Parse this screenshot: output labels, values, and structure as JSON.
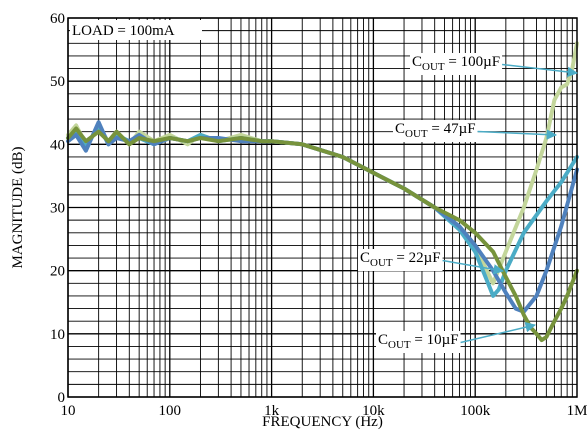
{
  "chart_data": {
    "type": "line",
    "xlabel": "FREQUENCY (Hz)",
    "ylabel": "MAGNITUDE (dB)",
    "x_scale": "log",
    "xlim": [
      10,
      1000000
    ],
    "ylim": [
      0,
      60
    ],
    "grid": true,
    "x_ticks": [
      {
        "value": 10,
        "label": "10"
      },
      {
        "value": 100,
        "label": "100"
      },
      {
        "value": 1000,
        "label": "1k"
      },
      {
        "value": 10000,
        "label": "10k"
      },
      {
        "value": 100000,
        "label": "100k"
      },
      {
        "value": 1000000,
        "label": "1M"
      }
    ],
    "y_ticks": [
      0,
      10,
      20,
      30,
      40,
      50,
      60
    ],
    "annotation_load": "LOAD = 100mA",
    "series": [
      {
        "name": "COUT = 100µF",
        "label_main": "C",
        "label_sub": "OUT",
        "label_rest": " = 100µF",
        "color": "#c3d69b",
        "points": [
          [
            10,
            41.5
          ],
          [
            12,
            43
          ],
          [
            15,
            40
          ],
          [
            20,
            42.5
          ],
          [
            25,
            40.5
          ],
          [
            30,
            42
          ],
          [
            40,
            40
          ],
          [
            50,
            42
          ],
          [
            70,
            40.5
          ],
          [
            100,
            41.5
          ],
          [
            150,
            40
          ],
          [
            200,
            41.5
          ],
          [
            300,
            40.5
          ],
          [
            500,
            41.5
          ],
          [
            800,
            40.5
          ],
          [
            1000,
            40.5
          ],
          [
            2000,
            40
          ],
          [
            5000,
            38
          ],
          [
            10000,
            35.5
          ],
          [
            20000,
            33
          ],
          [
            40000,
            30
          ],
          [
            70000,
            27
          ],
          [
            100000,
            24
          ],
          [
            130000,
            20
          ],
          [
            150000,
            18
          ],
          [
            200000,
            23
          ],
          [
            300000,
            30
          ],
          [
            400000,
            36
          ],
          [
            500000,
            41
          ],
          [
            600000,
            47
          ],
          [
            700000,
            49
          ],
          [
            800000,
            49.5
          ],
          [
            900000,
            52
          ],
          [
            1000000,
            56
          ]
        ]
      },
      {
        "name": "COUT = 47µF",
        "label_main": "C",
        "label_sub": "OUT",
        "label_rest": " = 47µF",
        "color": "#4bacc6",
        "points": [
          [
            10,
            41
          ],
          [
            12,
            42
          ],
          [
            15,
            39.5
          ],
          [
            20,
            43
          ],
          [
            25,
            40
          ],
          [
            30,
            41.5
          ],
          [
            40,
            40.5
          ],
          [
            50,
            41
          ],
          [
            70,
            40
          ],
          [
            100,
            41
          ],
          [
            150,
            40.5
          ],
          [
            200,
            41.5
          ],
          [
            300,
            40.5
          ],
          [
            500,
            41
          ],
          [
            800,
            40.5
          ],
          [
            1000,
            40.5
          ],
          [
            2000,
            40
          ],
          [
            5000,
            38
          ],
          [
            10000,
            35.5
          ],
          [
            20000,
            33
          ],
          [
            40000,
            30
          ],
          [
            70000,
            26.5
          ],
          [
            100000,
            23
          ],
          [
            130000,
            18.5
          ],
          [
            150000,
            16
          ],
          [
            170000,
            17
          ],
          [
            200000,
            20
          ],
          [
            300000,
            26
          ],
          [
            500000,
            31
          ],
          [
            700000,
            34
          ],
          [
            1000000,
            38
          ]
        ]
      },
      {
        "name": "COUT = 22µF",
        "label_main": "C",
        "label_sub": "OUT",
        "label_rest": " = 22µF",
        "color": "#4f81bd",
        "points": [
          [
            10,
            40.5
          ],
          [
            12,
            41.5
          ],
          [
            15,
            39
          ],
          [
            20,
            43.5
          ],
          [
            25,
            40
          ],
          [
            30,
            41
          ],
          [
            40,
            40.5
          ],
          [
            50,
            41.5
          ],
          [
            70,
            40
          ],
          [
            100,
            41
          ],
          [
            150,
            40.5
          ],
          [
            200,
            41
          ],
          [
            300,
            41
          ],
          [
            500,
            40.5
          ],
          [
            800,
            40.5
          ],
          [
            1000,
            40.5
          ],
          [
            2000,
            40
          ],
          [
            5000,
            38
          ],
          [
            10000,
            35.5
          ],
          [
            20000,
            33
          ],
          [
            40000,
            30
          ],
          [
            70000,
            27
          ],
          [
            100000,
            24
          ],
          [
            150000,
            20
          ],
          [
            200000,
            16.5
          ],
          [
            250000,
            14
          ],
          [
            300000,
            13.5
          ],
          [
            400000,
            16
          ],
          [
            500000,
            20
          ],
          [
            700000,
            27
          ],
          [
            1000000,
            36
          ]
        ]
      },
      {
        "name": "COUT = 10µF",
        "label_main": "C",
        "label_sub": "OUT",
        "label_rest": " = 10µF",
        "color": "#77933c",
        "points": [
          [
            10,
            41
          ],
          [
            12,
            42.5
          ],
          [
            15,
            40.5
          ],
          [
            20,
            42
          ],
          [
            25,
            40.5
          ],
          [
            30,
            42
          ],
          [
            40,
            40
          ],
          [
            50,
            41
          ],
          [
            70,
            40.5
          ],
          [
            100,
            41
          ],
          [
            150,
            40.5
          ],
          [
            200,
            41
          ],
          [
            300,
            40.5
          ],
          [
            500,
            41
          ],
          [
            800,
            40.5
          ],
          [
            1000,
            40.5
          ],
          [
            2000,
            40
          ],
          [
            5000,
            38
          ],
          [
            10000,
            35.5
          ],
          [
            20000,
            33
          ],
          [
            40000,
            30
          ],
          [
            70000,
            28
          ],
          [
            100000,
            26
          ],
          [
            150000,
            23
          ],
          [
            200000,
            19
          ],
          [
            250000,
            16
          ],
          [
            300000,
            13
          ],
          [
            350000,
            11
          ],
          [
            400000,
            10
          ],
          [
            450000,
            9
          ],
          [
            500000,
            9.5
          ],
          [
            600000,
            12
          ],
          [
            700000,
            14
          ],
          [
            800000,
            16
          ],
          [
            1000000,
            20
          ]
        ]
      }
    ],
    "label_positions": [
      {
        "series": 0,
        "tx": 412,
        "ty": 66,
        "ax": 577,
        "ay": 73
      },
      {
        "series": 1,
        "tx": 395,
        "ty": 133,
        "ax": 556,
        "ay": 135
      },
      {
        "series": 2,
        "tx": 360,
        "ty": 262,
        "ax": 503,
        "ay": 271
      },
      {
        "series": 3,
        "tx": 378,
        "ty": 344,
        "ax": 535,
        "ay": 325
      }
    ]
  }
}
